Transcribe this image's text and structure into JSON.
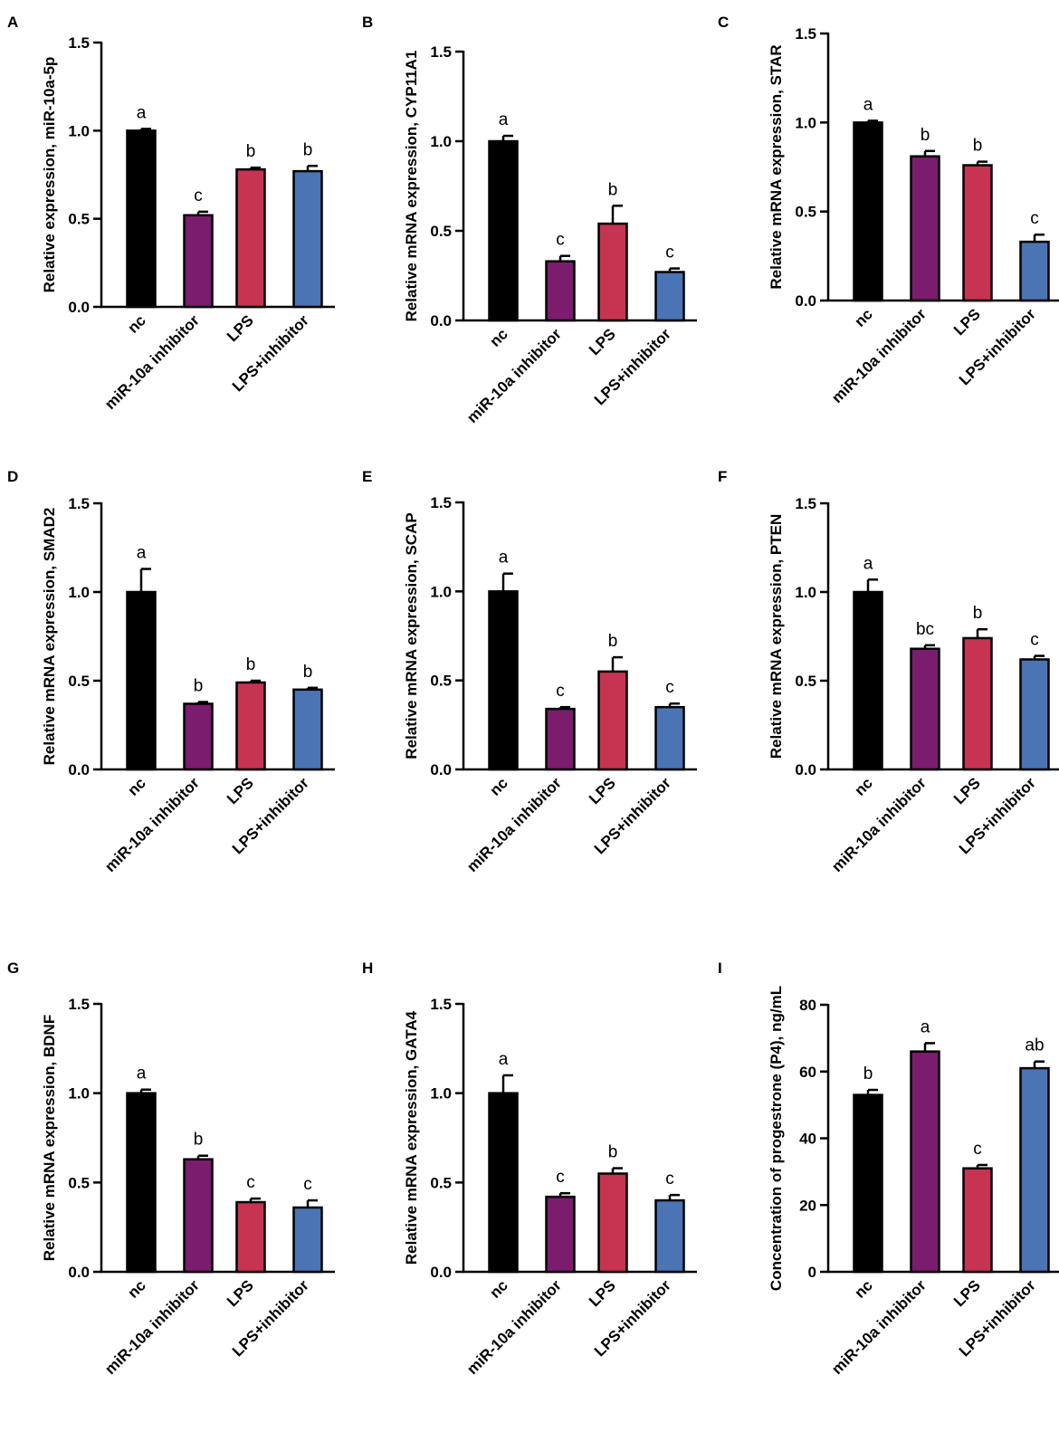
{
  "colors": {
    "nc": "#000000",
    "miR-10a inhibitor": "#7b1c6e",
    "LPS": "#c73451",
    "LPS+inhibitor": "#4a74b3",
    "axis": "#000000"
  },
  "chart_data": [
    {
      "panel": "A",
      "type": "bar",
      "title": "",
      "xlabel": "",
      "ylabel": "Relative expression, miR-10a-5p",
      "categories": [
        "nc",
        "miR-10a inhibitor",
        "LPS",
        "LPS+inhibitor"
      ],
      "values": [
        1.0,
        0.52,
        0.78,
        0.77
      ],
      "errors": [
        0.01,
        0.02,
        0.01,
        0.03
      ],
      "letters": [
        "a",
        "c",
        "b",
        "b"
      ],
      "ylim": [
        0,
        1.5
      ],
      "ticks": [
        "0.0",
        "0.5",
        "1.0",
        "1.5"
      ]
    },
    {
      "panel": "B",
      "type": "bar",
      "title": "",
      "xlabel": "",
      "ylabel": "Relative mRNA expression, CYP11A1",
      "categories": [
        "nc",
        "miR-10a inhibitor",
        "LPS",
        "LPS+inhibitor"
      ],
      "values": [
        1.0,
        0.33,
        0.54,
        0.27
      ],
      "errors": [
        0.03,
        0.03,
        0.1,
        0.02
      ],
      "letters": [
        "a",
        "c",
        "b",
        "c"
      ],
      "ylim": [
        0,
        1.5
      ],
      "ticks": [
        "0.0",
        "0.5",
        "1.0",
        "1.5"
      ]
    },
    {
      "panel": "C",
      "type": "bar",
      "title": "",
      "xlabel": "",
      "ylabel": "Relative mRNA expression, STAR",
      "categories": [
        "nc",
        "miR-10a inhibitor",
        "LPS",
        "LPS+inhibitor"
      ],
      "values": [
        1.0,
        0.81,
        0.76,
        0.33
      ],
      "errors": [
        0.01,
        0.03,
        0.02,
        0.04
      ],
      "letters": [
        "a",
        "b",
        "b",
        "c"
      ],
      "ylim": [
        0,
        1.5
      ],
      "ticks": [
        "0.0",
        "0.5",
        "1.0",
        "1.5"
      ]
    },
    {
      "panel": "D",
      "type": "bar",
      "title": "",
      "xlabel": "",
      "ylabel": "Relative mRNA expression, SMAD2",
      "categories": [
        "nc",
        "miR-10a inhibitor",
        "LPS",
        "LPS+inhibitor"
      ],
      "values": [
        1.0,
        0.37,
        0.49,
        0.45
      ],
      "errors": [
        0.13,
        0.01,
        0.01,
        0.01
      ],
      "letters": [
        "a",
        "b",
        "b",
        "b"
      ],
      "ylim": [
        0,
        1.5
      ],
      "ticks": [
        "0.0",
        "0.5",
        "1.0",
        "1.5"
      ]
    },
    {
      "panel": "E",
      "type": "bar",
      "title": "",
      "xlabel": "",
      "ylabel": "Relative mRNA expression, SCAP",
      "categories": [
        "nc",
        "miR-10a inhibitor",
        "LPS",
        "LPS+inhibitor"
      ],
      "values": [
        1.0,
        0.34,
        0.55,
        0.35
      ],
      "errors": [
        0.1,
        0.01,
        0.08,
        0.02
      ],
      "letters": [
        "a",
        "c",
        "b",
        "c"
      ],
      "ylim": [
        0,
        1.5
      ],
      "ticks": [
        "0.0",
        "0.5",
        "1.0",
        "1.5"
      ]
    },
    {
      "panel": "F",
      "type": "bar",
      "title": "",
      "xlabel": "",
      "ylabel": "Relative mRNA expression, PTEN",
      "categories": [
        "nc",
        "miR-10a inhibitor",
        "LPS",
        "LPS+inhibitor"
      ],
      "values": [
        1.0,
        0.68,
        0.74,
        0.62
      ],
      "errors": [
        0.07,
        0.02,
        0.05,
        0.02
      ],
      "letters": [
        "a",
        "bc",
        "b",
        "c"
      ],
      "ylim": [
        0,
        1.5
      ],
      "ticks": [
        "0.0",
        "0.5",
        "1.0",
        "1.5"
      ]
    },
    {
      "panel": "G",
      "type": "bar",
      "title": "",
      "xlabel": "",
      "ylabel": "Relative mRNA expression, BDNF",
      "categories": [
        "nc",
        "miR-10a inhibitor",
        "LPS",
        "LPS+inhibitor"
      ],
      "values": [
        1.0,
        0.63,
        0.39,
        0.36
      ],
      "errors": [
        0.02,
        0.02,
        0.02,
        0.04
      ],
      "letters": [
        "a",
        "b",
        "c",
        "c"
      ],
      "ylim": [
        0,
        1.5
      ],
      "ticks": [
        "0.0",
        "0.5",
        "1.0",
        "1.5"
      ]
    },
    {
      "panel": "H",
      "type": "bar",
      "title": "",
      "xlabel": "",
      "ylabel": "Relative mRNA expression, GATA4",
      "categories": [
        "nc",
        "miR-10a inhibitor",
        "LPS",
        "LPS+inhibitor"
      ],
      "values": [
        1.0,
        0.42,
        0.55,
        0.4
      ],
      "errors": [
        0.1,
        0.02,
        0.03,
        0.03
      ],
      "letters": [
        "a",
        "c",
        "b",
        "c"
      ],
      "ylim": [
        0,
        1.5
      ],
      "ticks": [
        "0.0",
        "0.5",
        "1.0",
        "1.5"
      ]
    },
    {
      "panel": "I",
      "type": "bar",
      "title": "",
      "xlabel": "",
      "ylabel": "Concentration of progestrone (P4), ng/mL",
      "categories": [
        "nc",
        "miR-10a inhibitor",
        "LPS",
        "LPS+inhibitor"
      ],
      "values": [
        53,
        66,
        31,
        61
      ],
      "errors": [
        1.5,
        2.5,
        1.0,
        2.0
      ],
      "letters": [
        "b",
        "a",
        "c",
        "ab"
      ],
      "ylim": [
        0,
        80
      ],
      "ticks": [
        "0",
        "20",
        "40",
        "60",
        "80"
      ]
    }
  ]
}
